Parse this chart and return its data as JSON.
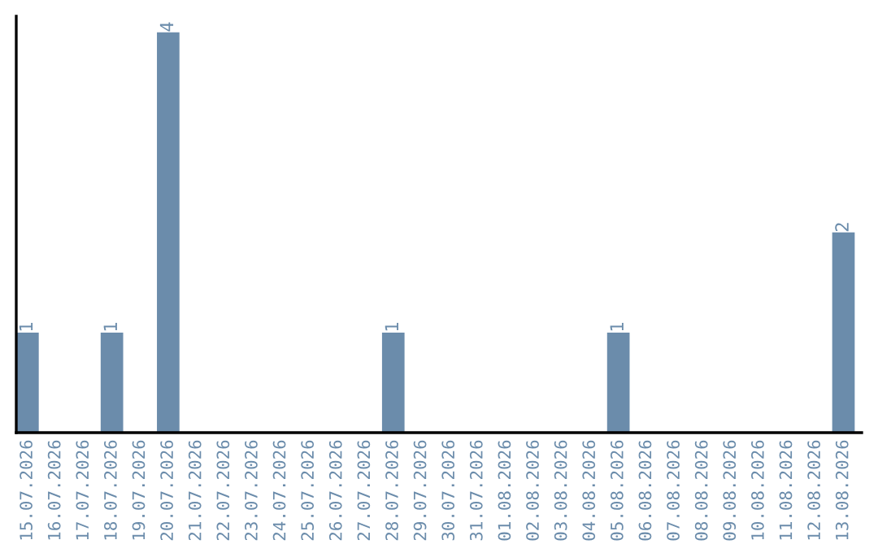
{
  "chart_data": {
    "type": "bar",
    "categories": [
      "15.07.2026",
      "16.07.2026",
      "17.07.2026",
      "18.07.2026",
      "19.07.2026",
      "20.07.2026",
      "21.07.2026",
      "22.07.2026",
      "23.07.2026",
      "24.07.2026",
      "25.07.2026",
      "26.07.2026",
      "27.07.2026",
      "28.07.2026",
      "29.07.2026",
      "30.07.2026",
      "31.07.2026",
      "01.08.2026",
      "02.08.2026",
      "03.08.2026",
      "04.08.2026",
      "05.08.2026",
      "06.08.2026",
      "07.08.2026",
      "08.08.2026",
      "09.08.2026",
      "10.08.2026",
      "11.08.2026",
      "12.08.2026",
      "13.08.2026"
    ],
    "values": [
      1,
      0,
      0,
      1,
      0,
      4,
      0,
      0,
      0,
      0,
      0,
      0,
      0,
      1,
      0,
      0,
      0,
      0,
      0,
      0,
      0,
      1,
      0,
      0,
      0,
      0,
      0,
      0,
      0,
      2
    ],
    "value_labels": [
      "1",
      null,
      null,
      "1",
      null,
      "4",
      null,
      null,
      null,
      null,
      null,
      null,
      null,
      "1",
      null,
      null,
      null,
      null,
      null,
      null,
      null,
      "1",
      null,
      null,
      null,
      null,
      null,
      null,
      null,
      "2"
    ],
    "color": "#6b8cab",
    "tick_labels": "x",
    "grid": false,
    "legend": false
  }
}
